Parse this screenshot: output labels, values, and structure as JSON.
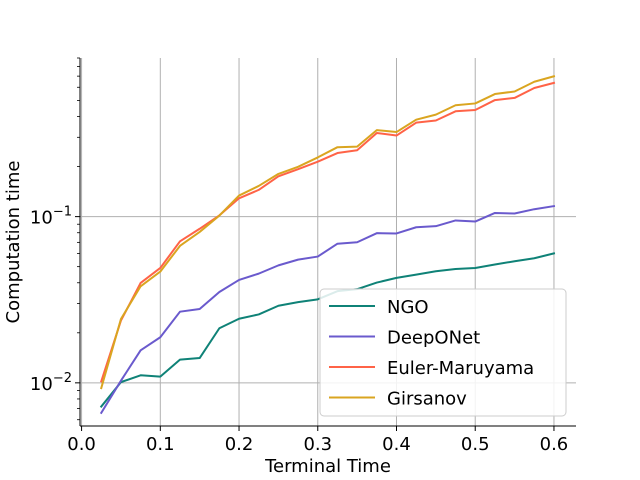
{
  "chart_data": {
    "type": "line",
    "title": "",
    "xlabel": "Terminal Time",
    "ylabel": "Computation time",
    "x": [
      0.025,
      0.05,
      0.075,
      0.1,
      0.125,
      0.15,
      0.175,
      0.2,
      0.225,
      0.25,
      0.275,
      0.3,
      0.325,
      0.35,
      0.375,
      0.4,
      0.425,
      0.45,
      0.475,
      0.5,
      0.525,
      0.55,
      0.575,
      0.6
    ],
    "xlim": [
      -0.002,
      0.628
    ],
    "ylim": [
      0.0055,
      0.9
    ],
    "yscale": "log",
    "xticks": [
      0.0,
      0.1,
      0.2,
      0.3,
      0.4,
      0.5,
      0.6
    ],
    "xtick_labels": [
      "0.0",
      "0.1",
      "0.2",
      "0.3",
      "0.4",
      "0.5",
      "0.6"
    ],
    "yticks": [
      0.01,
      0.1
    ],
    "ytick_labels": [
      {
        "base": "10",
        "exp": "−2"
      },
      {
        "base": "10",
        "exp": "−1"
      }
    ],
    "grid": true,
    "legend_position": "lower-right",
    "series": [
      {
        "name": "NGO",
        "color": "#0f8277",
        "values": [
          0.0072,
          0.0101,
          0.0111,
          0.0109,
          0.0138,
          0.0141,
          0.0213,
          0.0243,
          0.0258,
          0.0291,
          0.0306,
          0.0318,
          0.0356,
          0.0366,
          0.0401,
          0.0428,
          0.0448,
          0.0469,
          0.0484,
          0.0491,
          0.0515,
          0.0539,
          0.0562,
          0.0601
        ]
      },
      {
        "name": "DeepONet",
        "color": "#6a5acd",
        "values": [
          0.0066,
          0.0103,
          0.0157,
          0.0188,
          0.0268,
          0.0278,
          0.0352,
          0.0416,
          0.0454,
          0.0509,
          0.0551,
          0.0575,
          0.0687,
          0.0701,
          0.0795,
          0.0792,
          0.0863,
          0.0876,
          0.0948,
          0.0934,
          0.1052,
          0.1044,
          0.1108,
          0.1157
        ]
      },
      {
        "name": "Euler-Maruyama",
        "color": "#ff6347",
        "values": [
          0.0102,
          0.0237,
          0.0399,
          0.0491,
          0.071,
          0.0845,
          0.1017,
          0.1289,
          0.1448,
          0.1747,
          0.193,
          0.2141,
          0.2413,
          0.2509,
          0.3186,
          0.3074,
          0.3674,
          0.3787,
          0.4301,
          0.4377,
          0.5025,
          0.5177,
          0.5941,
          0.6378
        ]
      },
      {
        "name": "Girsanov",
        "color": "#daa520",
        "values": [
          0.0093,
          0.0242,
          0.0381,
          0.0467,
          0.0667,
          0.0809,
          0.1014,
          0.1339,
          0.153,
          0.1807,
          0.1994,
          0.2271,
          0.2616,
          0.2635,
          0.3313,
          0.3227,
          0.3828,
          0.4108,
          0.4675,
          0.4796,
          0.5462,
          0.5662,
          0.6478,
          0.6986
        ]
      }
    ]
  }
}
